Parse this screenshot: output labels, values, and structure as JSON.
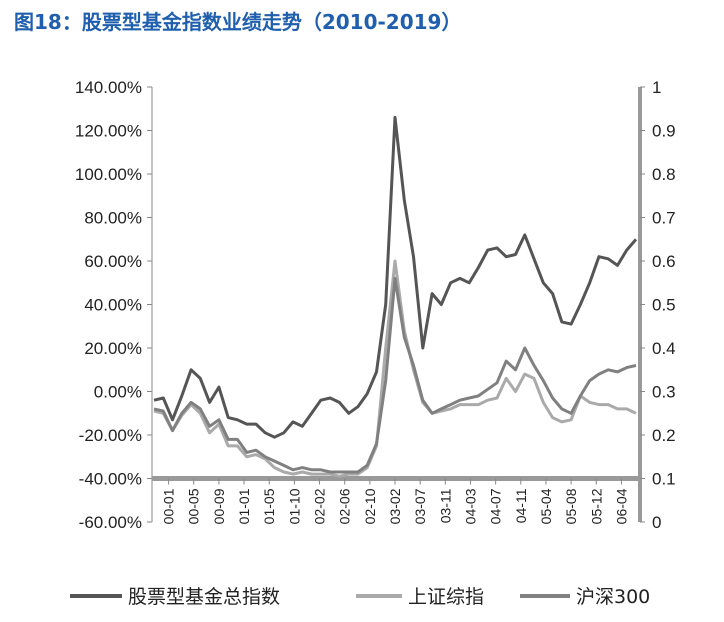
{
  "title": "图18：股票型基金指数业绩走势（2010-2019）",
  "chart_data": {
    "type": "line",
    "title": "图18：股票型基金指数业绩走势（2010-2019）",
    "y_left_ticks": [
      "140.00%",
      "120.00%",
      "100.00%",
      "80.00%",
      "60.00%",
      "40.00%",
      "20.00%",
      "0.00%",
      "-20.00%",
      "-40.00%",
      "-60.00%"
    ],
    "y_right_ticks": [
      "1",
      "0.9",
      "0.8",
      "0.7",
      "0.6",
      "0.5",
      "0.4",
      "0.3",
      "0.2",
      "0.1",
      "0"
    ],
    "ylim_left": [
      -60,
      140
    ],
    "ylim_right": [
      0,
      1
    ],
    "x_ticks": [
      "00-01",
      "00-05",
      "00-09",
      "01-01",
      "01-05",
      "01-10",
      "02-02",
      "02-06",
      "02-10",
      "03-02",
      "03-07",
      "03-11",
      "04-03",
      "04-07",
      "04-11",
      "05-04",
      "05-08",
      "05-12",
      "06-04"
    ],
    "legend_position": "bottom",
    "colors": {
      "fund": "#555555",
      "sse": "#aaaaaa",
      "csi300": "#808080",
      "axis": "#999999"
    },
    "series": [
      {
        "name": "股票型基金总指数",
        "values": [
          -4,
          -3,
          -13,
          -2,
          10,
          6,
          -5,
          2,
          -12,
          -13,
          -15,
          -15,
          -19,
          -21,
          -19,
          -14,
          -16,
          -10,
          -4,
          -3,
          -5,
          -10,
          -7,
          -1,
          9,
          40,
          126,
          88,
          62,
          20,
          45,
          40,
          50,
          52,
          50,
          57,
          65,
          66,
          62,
          63,
          72,
          61,
          50,
          45,
          32,
          31,
          40,
          50,
          62,
          61,
          58,
          65,
          70
        ]
      },
      {
        "name": "上证综指",
        "values": [
          -9,
          -10,
          -18,
          -11,
          -6,
          -10,
          -19,
          -15,
          -25,
          -25,
          -30,
          -29,
          -31,
          -35,
          -37,
          -38,
          -37,
          -38,
          -38,
          -38,
          -39,
          -38,
          -38,
          -35,
          -25,
          20,
          60,
          28,
          10,
          -5,
          -10,
          -9,
          -8,
          -6,
          -6,
          -6,
          -4,
          -3,
          6,
          0,
          8,
          6,
          -5,
          -12,
          -14,
          -13,
          -2,
          -5,
          -6,
          -6,
          -8,
          -8,
          -10
        ]
      },
      {
        "name": "沪深300",
        "values": [
          -8,
          -9,
          -18,
          -10,
          -5,
          -8,
          -16,
          -13,
          -22,
          -22,
          -28,
          -27,
          -30,
          -32,
          -34,
          -36,
          -35,
          -36,
          -36,
          -37,
          -37,
          -37,
          -37,
          -34,
          -24,
          5,
          52,
          25,
          12,
          -4,
          -10,
          -8,
          -6,
          -4,
          -3,
          -2,
          1,
          4,
          14,
          10,
          20,
          12,
          5,
          -3,
          -8,
          -10,
          -2,
          5,
          8,
          10,
          9,
          11,
          12
        ]
      }
    ]
  },
  "legend": {
    "fund": "股票型基金总指数",
    "sse": "上证综指",
    "csi300": "沪深300"
  }
}
